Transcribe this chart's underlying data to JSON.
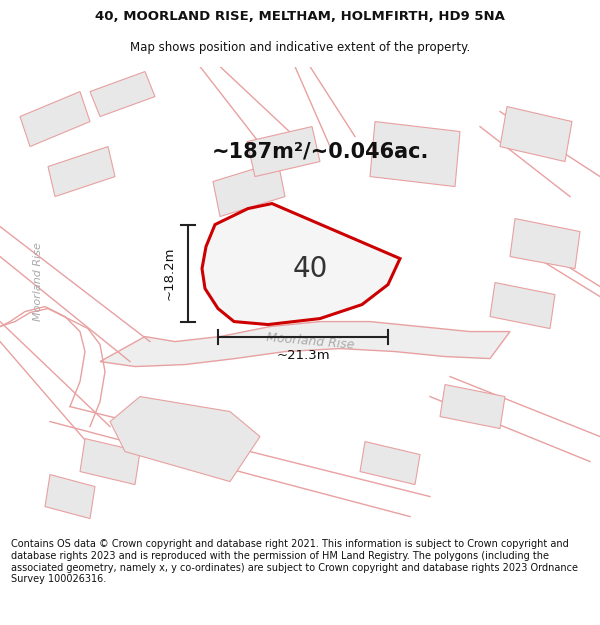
{
  "title_line1": "40, MOORLAND RISE, MELTHAM, HOLMFIRTH, HD9 5NA",
  "title_line2": "Map shows position and indicative extent of the property.",
  "area_label": "~187m²/~0.046ac.",
  "plot_number": "40",
  "road_name": "Moorland Rise",
  "road_label_left": "Moorland Rise",
  "dim_height": "~18.2m",
  "dim_width": "~21.3m",
  "footer_text": "Contains OS data © Crown copyright and database right 2021. This information is subject to Crown copyright and database rights 2023 and is reproduced with the permission of HM Land Registry. The polygons (including the associated geometry, namely x, y co-ordinates) are subject to Crown copyright and database rights 2023 Ordnance Survey 100026316.",
  "bg_color": "#f0f0f0",
  "plot_fill": "#f0f0f0",
  "plot_edge": "#cc0000",
  "neighbor_fill": "#e8e8e8",
  "neighbor_edge": "#e8a0a0",
  "road_color": "#e8a0a0",
  "road_fill": "#f0f0f0",
  "dim_line_color": "#222222",
  "text_color": "#111111",
  "road_text_color": "#aaaaaa"
}
